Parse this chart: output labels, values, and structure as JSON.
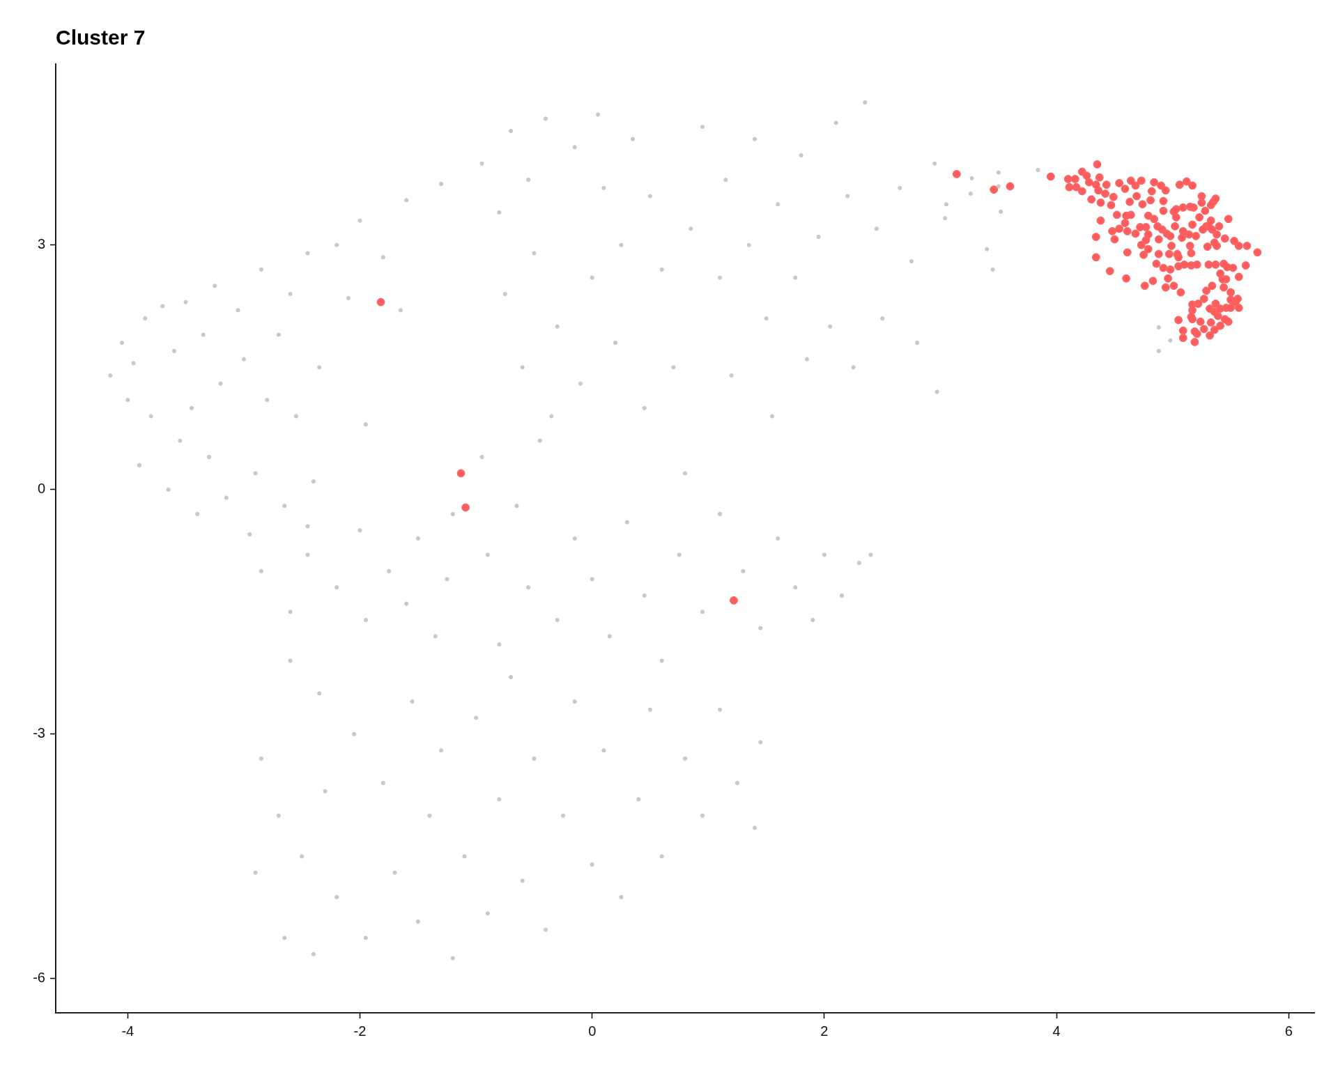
{
  "chart_data": {
    "type": "scatter",
    "title": "Cluster 7",
    "series": [
      {
        "color": "#c8c8c8",
        "x": [
          -4.15,
          -4.05,
          -4.0,
          -3.95,
          -3.9,
          -3.85,
          -3.8,
          -3.7,
          -3.65,
          -3.6,
          -3.55,
          -3.5,
          -3.45,
          -3.4,
          -3.35,
          -3.3,
          -3.25,
          -3.2,
          -3.15,
          -3.05,
          -3.0,
          -2.95,
          -2.9,
          -2.85,
          -2.8,
          -2.7,
          -2.65,
          -2.6,
          -2.55,
          -2.45,
          -2.4,
          -2.45,
          -2.35,
          -2.2,
          -2.1,
          -2.0,
          -1.95,
          -1.8,
          -1.65,
          -1.6,
          -1.3,
          -0.95,
          -0.8,
          -0.75,
          -0.7,
          -0.6,
          -0.55,
          -0.5,
          -0.4,
          -0.35,
          -0.3,
          -0.15,
          -0.1,
          0.0,
          0.05,
          0.1,
          0.2,
          0.25,
          0.35,
          0.45,
          0.5,
          0.6,
          0.7,
          0.8,
          0.85,
          0.95,
          1.1,
          1.15,
          1.2,
          1.35,
          1.4,
          1.5,
          1.55,
          1.6,
          1.75,
          1.8,
          1.85,
          1.95,
          2.05,
          2.1,
          2.2,
          2.25,
          2.35,
          2.45,
          2.5,
          2.65,
          2.75,
          2.8,
          2.95,
          2.97,
          3.05,
          3.27,
          3.26,
          3.5,
          3.5,
          3.52,
          3.84,
          3.04,
          3.4,
          3.45,
          4.88,
          4.98,
          4.88,
          -2.85,
          -2.6,
          -2.45,
          -2.2,
          -2.0,
          -1.95,
          -1.75,
          -1.6,
          -1.5,
          -1.35,
          -1.25,
          -1.2,
          -0.95,
          -0.9,
          -0.8,
          -0.65,
          -0.55,
          -0.45,
          -0.3,
          -0.15,
          0.0,
          0.15,
          0.3,
          0.45,
          0.6,
          0.75,
          0.95,
          1.1,
          1.3,
          1.45,
          1.6,
          1.75,
          1.9,
          2.0,
          2.15,
          2.3,
          2.4,
          -2.85,
          -2.9,
          -2.7,
          -2.65,
          -2.6,
          -2.5,
          -2.4,
          -2.35,
          -2.3,
          -2.2,
          -2.05,
          -1.95,
          -1.8,
          -1.7,
          -1.55,
          -1.5,
          -1.4,
          -1.3,
          -1.2,
          -1.1,
          -1.0,
          -0.9,
          -0.8,
          -0.7,
          -0.6,
          -0.5,
          -0.4,
          -0.25,
          -0.15,
          0.0,
          0.1,
          0.25,
          0.4,
          0.5,
          0.6,
          0.8,
          0.95,
          1.1,
          1.25,
          1.4,
          1.45
        ],
        "values": [
          1.4,
          1.8,
          1.1,
          1.55,
          0.3,
          2.1,
          0.9,
          2.25,
          0.0,
          1.7,
          0.6,
          2.3,
          1.0,
          -0.3,
          1.9,
          0.4,
          2.5,
          1.3,
          -0.1,
          2.2,
          1.6,
          -0.55,
          0.2,
          2.7,
          1.1,
          1.9,
          -0.2,
          2.4,
          0.9,
          2.9,
          0.1,
          -0.45,
          1.5,
          3.0,
          2.35,
          3.3,
          0.8,
          2.85,
          2.2,
          3.55,
          3.75,
          4.0,
          3.4,
          2.4,
          4.4,
          1.5,
          3.8,
          2.9,
          4.55,
          0.9,
          2.0,
          4.2,
          1.3,
          2.6,
          4.6,
          3.7,
          1.8,
          3.0,
          4.3,
          1.0,
          3.6,
          2.7,
          1.5,
          0.2,
          3.2,
          4.45,
          2.6,
          3.8,
          1.4,
          3.0,
          4.3,
          2.1,
          0.9,
          3.5,
          2.6,
          4.1,
          1.6,
          3.1,
          2.0,
          4.5,
          3.6,
          1.5,
          4.75,
          3.2,
          2.1,
          3.7,
          2.8,
          1.8,
          4.0,
          1.2,
          3.5,
          3.82,
          3.63,
          3.89,
          3.72,
          3.41,
          3.92,
          3.33,
          2.95,
          2.7,
          1.99,
          1.83,
          1.7,
          -1.0,
          -1.5,
          -0.8,
          -1.2,
          -0.5,
          -1.6,
          -1.0,
          -1.4,
          -0.6,
          -1.8,
          -1.1,
          -0.3,
          0.4,
          -0.8,
          -1.9,
          -0.2,
          -1.2,
          0.6,
          -1.6,
          -0.6,
          -1.1,
          -1.8,
          -0.4,
          -1.3,
          -2.1,
          -0.8,
          -1.5,
          -0.3,
          -1.0,
          -1.7,
          -0.6,
          -1.2,
          -1.6,
          -0.8,
          -1.3,
          -0.9,
          -0.8,
          -3.3,
          -4.7,
          -4.0,
          -5.5,
          -2.1,
          -4.5,
          -5.7,
          -2.5,
          -3.7,
          -5.0,
          -3.0,
          -5.5,
          -3.6,
          -4.7,
          -2.6,
          -5.3,
          -4.0,
          -3.2,
          -5.75,
          -4.5,
          -2.8,
          -5.2,
          -3.8,
          -2.3,
          -4.8,
          -3.3,
          -5.4,
          -4.0,
          -2.6,
          -4.6,
          -3.2,
          -5.0,
          -3.8,
          -2.7,
          -4.5,
          -3.3,
          -4.0,
          -2.7,
          -3.6,
          -4.15,
          -3.1
        ]
      },
      {
        "color": "#ff5e5e",
        "x": [
          -1.82,
          -1.13,
          -1.09,
          1.22,
          3.14,
          3.46,
          3.6,
          3.95,
          4.35,
          4.1,
          4.16,
          4.11,
          4.17,
          4.22,
          4.26,
          4.22,
          4.28,
          4.37,
          4.34,
          4.36,
          4.43,
          4.42,
          4.3,
          4.38,
          4.47,
          4.49,
          4.52,
          4.38,
          4.48,
          4.34,
          4.5,
          4.34,
          4.46,
          4.6,
          4.61,
          4.54,
          4.59,
          4.64,
          4.68,
          4.73,
          4.69,
          4.63,
          4.74,
          4.81,
          4.82,
          4.84,
          4.9,
          4.94,
          4.92,
          4.92,
          4.79,
          4.84,
          4.6,
          4.64,
          4.59,
          4.54,
          4.61,
          4.72,
          4.77,
          4.68,
          4.79,
          4.77,
          4.73,
          4.79,
          4.75,
          4.88,
          4.87,
          4.91,
          4.95,
          4.98,
          4.88,
          4.86,
          4.92,
          4.98,
          4.96,
          4.94,
          5.01,
          5.07,
          4.83,
          4.76,
          4.97,
          5.04,
          5.05,
          4.99,
          5.02,
          5.09,
          5.08,
          5.15,
          5.16,
          5.14,
          5.17,
          5.2,
          5.09,
          5.01,
          5.03,
          5.03,
          5.15,
          5.18,
          5.23,
          5.26,
          5.29,
          5.31,
          5.34,
          5.33,
          5.28,
          5.33,
          5.35,
          5.37,
          5.25,
          5.25,
          5.06,
          5.12,
          5.17,
          5.4,
          5.38,
          5.45,
          5.48,
          5.53,
          5.57,
          5.64,
          5.73,
          5.63,
          5.52,
          5.47,
          5.44,
          5.37,
          5.31,
          5.21,
          5.16,
          5.1,
          5.05,
          5.3,
          5.36,
          5.38,
          5.41,
          5.43,
          5.46,
          5.57,
          5.44,
          5.5,
          5.34,
          5.29,
          5.27,
          5.22,
          5.17,
          5.17,
          5.16,
          5.05,
          5.17,
          5.24,
          5.19,
          5.21,
          5.27,
          5.09,
          5.09,
          5.19,
          5.32,
          5.33,
          5.36,
          5.41,
          5.45,
          5.48,
          5.32,
          5.37,
          5.36,
          5.39,
          5.41,
          5.46,
          5.5,
          5.57,
          5.54,
          5.56,
          5.5
        ],
        "values": [
          2.3,
          0.2,
          -0.22,
          -1.36,
          3.87,
          3.68,
          3.72,
          3.84,
          3.99,
          3.81,
          3.81,
          3.71,
          3.71,
          3.9,
          3.85,
          3.66,
          3.77,
          3.83,
          3.74,
          3.67,
          3.74,
          3.63,
          3.56,
          3.52,
          3.49,
          3.59,
          3.37,
          3.3,
          3.17,
          3.1,
          3.07,
          2.85,
          2.68,
          2.59,
          2.91,
          3.76,
          3.69,
          3.79,
          3.73,
          3.79,
          3.6,
          3.53,
          3.5,
          3.55,
          3.66,
          3.77,
          3.73,
          3.67,
          3.54,
          3.42,
          3.36,
          3.32,
          3.36,
          3.37,
          3.27,
          3.2,
          3.17,
          3.22,
          3.22,
          3.14,
          3.13,
          3.06,
          3.0,
          2.95,
          2.88,
          3.07,
          3.23,
          3.19,
          3.14,
          3.11,
          2.89,
          2.77,
          2.72,
          2.7,
          2.59,
          2.48,
          2.5,
          2.42,
          2.56,
          2.5,
          2.89,
          2.89,
          2.85,
          2.99,
          3.23,
          3.17,
          3.09,
          2.99,
          2.9,
          3.13,
          3.25,
          3.11,
          3.46,
          3.41,
          3.44,
          3.34,
          3.47,
          3.46,
          3.34,
          3.19,
          3.23,
          3.23,
          3.19,
          3.3,
          3.42,
          3.49,
          3.53,
          3.57,
          3.6,
          3.52,
          3.74,
          3.78,
          3.73,
          3.23,
          3.13,
          3.08,
          3.32,
          3.05,
          2.99,
          2.99,
          2.91,
          2.75,
          2.72,
          2.73,
          2.77,
          2.76,
          2.76,
          2.76,
          2.75,
          2.76,
          2.74,
          2.98,
          3.03,
          2.99,
          2.65,
          2.58,
          2.58,
          2.61,
          2.48,
          2.42,
          2.5,
          2.44,
          2.34,
          2.28,
          2.27,
          2.2,
          2.12,
          2.08,
          2.09,
          2.06,
          1.94,
          1.91,
          1.97,
          1.95,
          1.86,
          1.81,
          1.89,
          2.05,
          1.96,
          2.01,
          2.09,
          2.06,
          2.22,
          2.28,
          2.18,
          2.13,
          2.22,
          2.23,
          2.23,
          2.23,
          2.3,
          2.34,
          2.33
        ]
      }
    ],
    "xlim": [
      -4.62,
      6.22
    ],
    "ylim": [
      -6.42,
      5.22
    ],
    "xticks": [
      -4,
      -2,
      0,
      2,
      4,
      6
    ],
    "yticks": [
      -6,
      -3,
      0,
      3
    ],
    "grid": false,
    "legend": false,
    "marker": "circle"
  }
}
